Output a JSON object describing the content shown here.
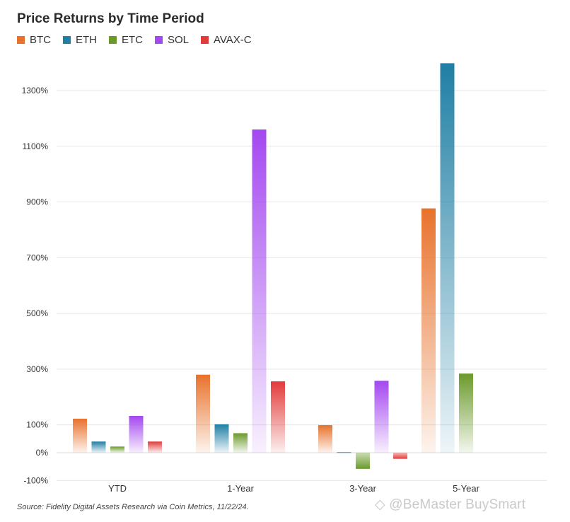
{
  "chart_data": {
    "type": "bar",
    "title": "Price Returns by Time Period",
    "categories": [
      "YTD",
      "1-Year",
      "3-Year",
      "5-Year"
    ],
    "series": [
      {
        "name": "BTC",
        "color": "#e8722c",
        "values": [
          122,
          280,
          99,
          877
        ]
      },
      {
        "name": "ETH",
        "color": "#1f7fa4",
        "values": [
          40,
          102,
          2,
          1398
        ]
      },
      {
        "name": "ETC",
        "color": "#6b9a2c",
        "values": [
          22,
          70,
          -58,
          284
        ]
      },
      {
        "name": "SOL",
        "color": "#a448f0",
        "values": [
          132,
          1160,
          258,
          null
        ]
      },
      {
        "name": "AVAX-C",
        "color": "#e23b3b",
        "values": [
          40,
          256,
          -22,
          null
        ]
      }
    ],
    "y_ticks": [
      1300,
      1100,
      900,
      700,
      500,
      300,
      100,
      0,
      -100
    ],
    "y_tick_labels": [
      "1300%",
      "1100%",
      "900%",
      "700%",
      "500%",
      "300%",
      "100%",
      "0%",
      "-100%"
    ],
    "ylim": [
      -100,
      1400
    ],
    "grid": true,
    "legend": "top-left",
    "xlabel": "",
    "ylabel": ""
  },
  "source": "Source: Fidelity Digital Assets Research via Coin Metrics, 11/22/24.",
  "watermark": "◇ @BeMaster BuySmart"
}
